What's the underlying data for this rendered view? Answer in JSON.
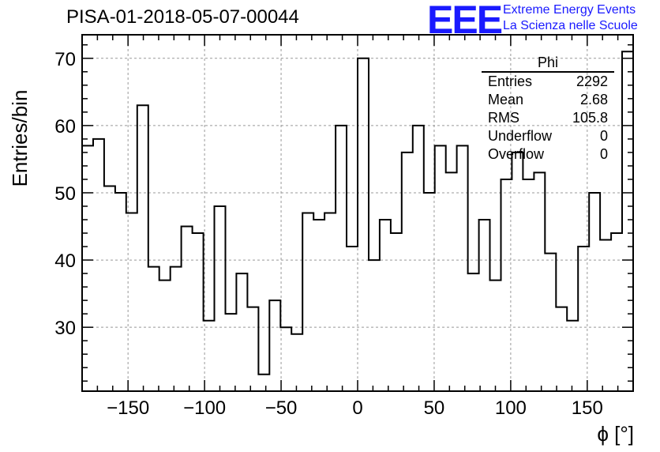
{
  "title": "PISA-01-2018-05-07-00044",
  "logo": {
    "mark": "EEE",
    "line1": "Extreme Energy Events",
    "line2": "La Scienza nelle Scuole",
    "color": "#1a1aff"
  },
  "stats": {
    "title": "Phi",
    "rows": [
      {
        "label": "Entries",
        "value": "2292"
      },
      {
        "label": "Mean",
        "value": "2.68"
      },
      {
        "label": "RMS",
        "value": "105.8"
      },
      {
        "label": "Underflow",
        "value": "0"
      },
      {
        "label": "Overflow",
        "value": "0"
      }
    ]
  },
  "chart_data": {
    "type": "histogram-step",
    "xlabel": "ϕ [°]",
    "ylabel": "Entries/bin",
    "xlim": [
      -180,
      180
    ],
    "ylim": [
      20.5,
      73.5
    ],
    "xticks": [
      -150,
      -100,
      -50,
      0,
      50,
      100,
      150
    ],
    "yticks": [
      30,
      40,
      50,
      60,
      70
    ],
    "grid": true,
    "bin_width": 7.2,
    "bin_start": -180,
    "values": [
      57,
      58,
      51,
      50,
      47,
      63,
      39,
      37,
      39,
      45,
      44,
      31,
      48,
      32,
      38,
      33,
      23,
      34,
      30,
      29,
      47,
      46,
      47,
      60,
      42,
      70,
      40,
      46,
      44,
      56,
      60,
      50,
      57,
      53,
      57,
      38,
      46,
      37,
      52,
      56,
      52,
      53,
      41,
      33,
      31,
      42,
      50,
      43,
      44,
      71
    ],
    "line_color": "#000000"
  }
}
